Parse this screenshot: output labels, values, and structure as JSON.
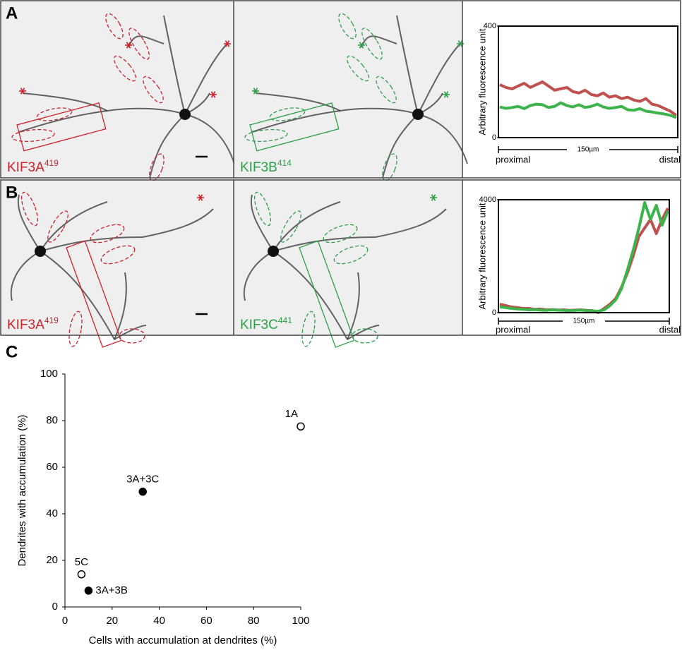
{
  "panels": [
    {
      "letter": "A",
      "images": [
        {
          "name": "KIF3A",
          "sup": "419",
          "color": "#d0202a"
        },
        {
          "name": "KIF3B",
          "sup": "414",
          "color": "#2ca048"
        }
      ]
    },
    {
      "letter": "B",
      "images": [
        {
          "name": "KIF3A",
          "sup": "419",
          "color": "#d0202a"
        },
        {
          "name": "KIF3C",
          "sup": "441",
          "color": "#2ca048"
        }
      ]
    },
    {
      "letter": "C"
    }
  ],
  "chart_data": [
    {
      "type": "line",
      "ylabel": "Arbitrary fluorescence unit",
      "ylim": [
        0,
        400
      ],
      "yticks": [
        0,
        400
      ],
      "start_label": "proximal",
      "scale_label": "150µm",
      "end_label": "distal",
      "series": [
        {
          "color": "#c0504d",
          "values": [
            190,
            180,
            175,
            185,
            195,
            180,
            190,
            200,
            185,
            170,
            175,
            180,
            165,
            160,
            170,
            155,
            150,
            160,
            145,
            150,
            140,
            145,
            135,
            130,
            140,
            120,
            115,
            105,
            95,
            80
          ]
        },
        {
          "color": "#3cb44b",
          "values": [
            110,
            105,
            108,
            112,
            104,
            115,
            120,
            118,
            108,
            112,
            125,
            115,
            110,
            118,
            108,
            112,
            120,
            110,
            105,
            108,
            112,
            100,
            98,
            104,
            95,
            92,
            88,
            85,
            80,
            72
          ]
        }
      ]
    },
    {
      "type": "line",
      "ylabel": "Arbitrary fluorescence unit",
      "ylim": [
        0,
        4000
      ],
      "yticks": [
        0,
        4000
      ],
      "start_label": "proximal",
      "scale_label": "150µm",
      "end_label": "distal",
      "series": [
        {
          "color": "#c0504d",
          "values": [
            300,
            250,
            200,
            180,
            150,
            150,
            120,
            130,
            100,
            110,
            90,
            100,
            80,
            90,
            100,
            80,
            70,
            0,
            150,
            300,
            500,
            900,
            1400,
            2000,
            2700,
            3000,
            3300,
            2800,
            3300,
            3700
          ]
        },
        {
          "color": "#3cb44b",
          "values": [
            200,
            180,
            150,
            130,
            120,
            100,
            110,
            90,
            80,
            100,
            90,
            80,
            70,
            80,
            90,
            70,
            60,
            50,
            100,
            250,
            450,
            850,
            1500,
            2200,
            3000,
            3900,
            3300,
            3800,
            3100,
            3600
          ]
        }
      ]
    },
    {
      "type": "scatter",
      "xlabel": "Cells with accumulation at dendrites (%)",
      "ylabel": "Dendrites with accumulation (%)",
      "xlim": [
        0,
        100
      ],
      "ylim": [
        0,
        100
      ],
      "xticks": [
        0,
        20,
        40,
        60,
        80,
        100
      ],
      "yticks": [
        0,
        20,
        40,
        60,
        80,
        100
      ],
      "points": [
        {
          "label": "1A",
          "x": 100,
          "y": 77.5,
          "filled": false
        },
        {
          "label": "3A+3C",
          "x": 33,
          "y": 49.5,
          "filled": true
        },
        {
          "label": "5C",
          "x": 7,
          "y": 14,
          "filled": false
        },
        {
          "label": "3A+3B",
          "x": 10,
          "y": 7,
          "filled": true
        }
      ]
    }
  ]
}
